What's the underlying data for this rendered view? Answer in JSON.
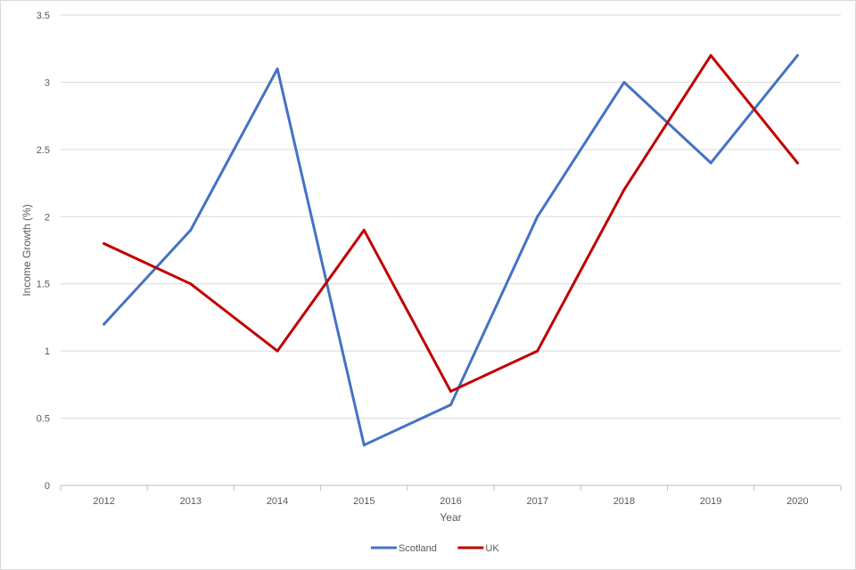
{
  "chart_data": {
    "type": "line",
    "title": "",
    "xlabel": "Year",
    "ylabel": "Income Growth (%)",
    "categories": [
      "2012",
      "2013",
      "2014",
      "2015",
      "2016",
      "2017",
      "2018",
      "2019",
      "2020"
    ],
    "ylim": [
      0,
      3.5
    ],
    "yticks": [
      "0",
      "0.5",
      "1",
      "1.5",
      "2",
      "2.5",
      "3",
      "3.5"
    ],
    "grid": true,
    "legend": "bottom-center",
    "series": [
      {
        "name": "Scotland",
        "color": "#4472c4",
        "values": [
          1.2,
          1.9,
          3.1,
          0.3,
          0.6,
          2.0,
          3.0,
          2.4,
          3.2
        ]
      },
      {
        "name": "UK",
        "color": "#c00000",
        "values": [
          1.8,
          1.5,
          1.0,
          1.9,
          0.7,
          1.0,
          2.2,
          3.2,
          2.4
        ]
      }
    ]
  }
}
